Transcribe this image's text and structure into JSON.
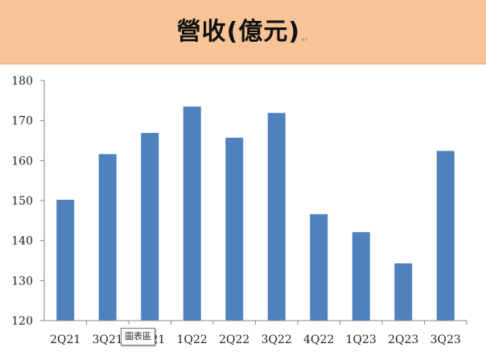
{
  "chart_data": {
    "type": "bar",
    "title": "營收(億元)",
    "title_mark": "↵",
    "categories": [
      "2Q21",
      "3Q21",
      "4Q21",
      "1Q22",
      "2Q22",
      "3Q22",
      "4Q22",
      "1Q23",
      "2Q23",
      "3Q23"
    ],
    "series": [
      {
        "values": [
          150.2,
          161.6,
          166.9,
          173.5,
          165.7,
          171.9,
          146.6,
          142.1,
          134.3,
          162.4
        ]
      }
    ],
    "ylim": [
      120,
      180
    ],
    "yticks": [
      120,
      130,
      140,
      150,
      160,
      170,
      180
    ],
    "xlabel": "",
    "ylabel": "",
    "grid": false,
    "legend": "none",
    "bar_color": "#4f81bd"
  },
  "tooltip": {
    "label": "圖表區"
  }
}
